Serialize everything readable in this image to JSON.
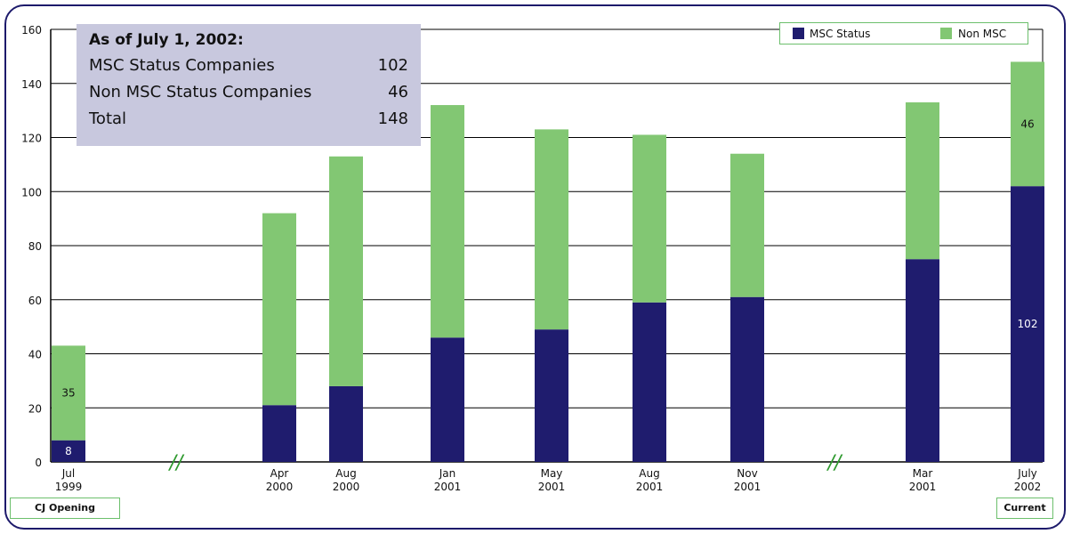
{
  "colors": {
    "msc": "#1f1c6e",
    "non_msc": "#82c773",
    "frame": "#1d1a6b"
  },
  "summary": {
    "title": "As of July 1, 2002:",
    "rows": [
      {
        "label": "MSC Status Companies",
        "value": "102"
      },
      {
        "label": "Non MSC Status Companies",
        "value": "46"
      },
      {
        "label": "Total",
        "value": "148"
      }
    ]
  },
  "legend": {
    "msc": "MSC Status",
    "non_msc": "Non MSC"
  },
  "labels": {
    "start": "CJ Opening",
    "end": "Current"
  },
  "chart_data": {
    "type": "bar",
    "stacked": true,
    "categories": [
      [
        "Jul",
        "1999"
      ],
      [
        "Apr",
        "2000"
      ],
      [
        "Aug",
        "2000"
      ],
      [
        "Jan",
        "2001"
      ],
      [
        "May",
        "2001"
      ],
      [
        "Aug",
        "2001"
      ],
      [
        "Nov",
        "2001"
      ],
      [
        "Mar",
        "2001"
      ],
      [
        "July",
        "2002"
      ]
    ],
    "series": [
      {
        "name": "MSC Status",
        "values": [
          8,
          21,
          28,
          46,
          49,
          59,
          61,
          75,
          102
        ]
      },
      {
        "name": "Non MSC",
        "values": [
          35,
          71,
          85,
          86,
          74,
          62,
          53,
          58,
          46
        ]
      }
    ],
    "data_labels": {
      "MSC Status": [
        "8",
        "",
        "",
        "",
        "",
        "",
        "",
        "",
        "102"
      ],
      "Non MSC": [
        "35",
        "",
        "",
        "",
        "",
        "",
        "",
        "",
        "46"
      ]
    },
    "y_ticks": [
      0,
      20,
      40,
      60,
      80,
      100,
      120,
      140,
      160
    ],
    "ylim": [
      0,
      160
    ],
    "axis_breaks": [
      "//",
      "//"
    ],
    "grid": true,
    "legend_position": "top-right"
  }
}
